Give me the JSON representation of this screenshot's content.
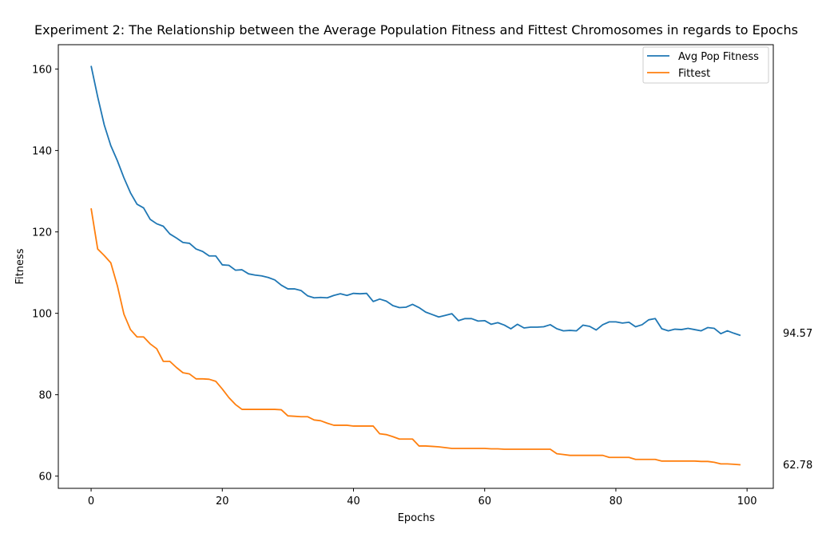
{
  "chart_data": {
    "type": "line",
    "title": "Experiment 2: The Relationship between the Average Population Fitness and Fittest Chromosomes in regards to Epochs",
    "xlabel": "Epochs",
    "ylabel": "Fitness",
    "xlim": [
      -5,
      104
    ],
    "ylim": [
      57,
      166
    ],
    "xticks": [
      0,
      20,
      40,
      60,
      80,
      100
    ],
    "yticks": [
      60,
      80,
      100,
      120,
      140,
      160
    ],
    "grid": false,
    "legend": "top-right",
    "end_labels": [
      "94.57",
      "62.78"
    ],
    "series": [
      {
        "name": "Avg Pop Fitness",
        "color": "#1f77b4",
        "values": [
          160.8,
          153.2,
          146.3,
          141.2,
          137.5,
          133.3,
          129.6,
          126.8,
          125.9,
          123.1,
          122.0,
          121.4,
          119.5,
          118.5,
          117.4,
          117.2,
          115.8,
          115.2,
          114.1,
          114.1,
          111.9,
          111.8,
          110.6,
          110.7,
          109.7,
          109.4,
          109.2,
          108.8,
          108.2,
          106.9,
          106.0,
          106.0,
          105.6,
          104.3,
          103.8,
          103.9,
          103.8,
          104.4,
          104.8,
          104.4,
          104.9,
          104.8,
          104.9,
          102.9,
          103.5,
          103.0,
          101.9,
          101.4,
          101.5,
          102.2,
          101.4,
          100.3,
          99.7,
          99.1,
          99.5,
          99.9,
          98.2,
          98.7,
          98.7,
          98.1,
          98.2,
          97.3,
          97.7,
          97.1,
          96.2,
          97.3,
          96.4,
          96.6,
          96.6,
          96.7,
          97.2,
          96.2,
          95.7,
          95.8,
          95.7,
          97.1,
          96.8,
          95.9,
          97.2,
          97.9,
          97.9,
          97.6,
          97.8,
          96.7,
          97.2,
          98.4,
          98.7,
          96.2,
          95.7,
          96.1,
          96.0,
          96.3,
          96.0,
          95.7,
          96.5,
          96.3,
          95.0,
          95.7,
          95.1,
          94.57
        ]
      },
      {
        "name": "Fittest",
        "color": "#ff7f0e",
        "values": [
          125.8,
          115.8,
          114.2,
          112.4,
          106.8,
          99.8,
          96.0,
          94.2,
          94.2,
          92.5,
          91.3,
          88.2,
          88.2,
          86.7,
          85.4,
          85.1,
          83.9,
          83.9,
          83.8,
          83.3,
          81.4,
          79.3,
          77.6,
          76.4,
          76.4,
          76.4,
          76.4,
          76.4,
          76.4,
          76.3,
          74.8,
          74.7,
          74.6,
          74.6,
          73.8,
          73.6,
          73.0,
          72.5,
          72.5,
          72.5,
          72.3,
          72.3,
          72.3,
          72.3,
          70.4,
          70.2,
          69.7,
          69.1,
          69.1,
          69.1,
          67.4,
          67.4,
          67.3,
          67.2,
          67.0,
          66.8,
          66.8,
          66.8,
          66.8,
          66.8,
          66.8,
          66.7,
          66.7,
          66.6,
          66.6,
          66.6,
          66.6,
          66.6,
          66.6,
          66.6,
          66.6,
          65.5,
          65.3,
          65.1,
          65.1,
          65.1,
          65.1,
          65.1,
          65.1,
          64.6,
          64.6,
          64.6,
          64.6,
          64.1,
          64.1,
          64.1,
          64.1,
          63.7,
          63.7,
          63.7,
          63.7,
          63.7,
          63.7,
          63.6,
          63.6,
          63.4,
          63.0,
          63.0,
          62.9,
          62.78
        ]
      }
    ]
  }
}
